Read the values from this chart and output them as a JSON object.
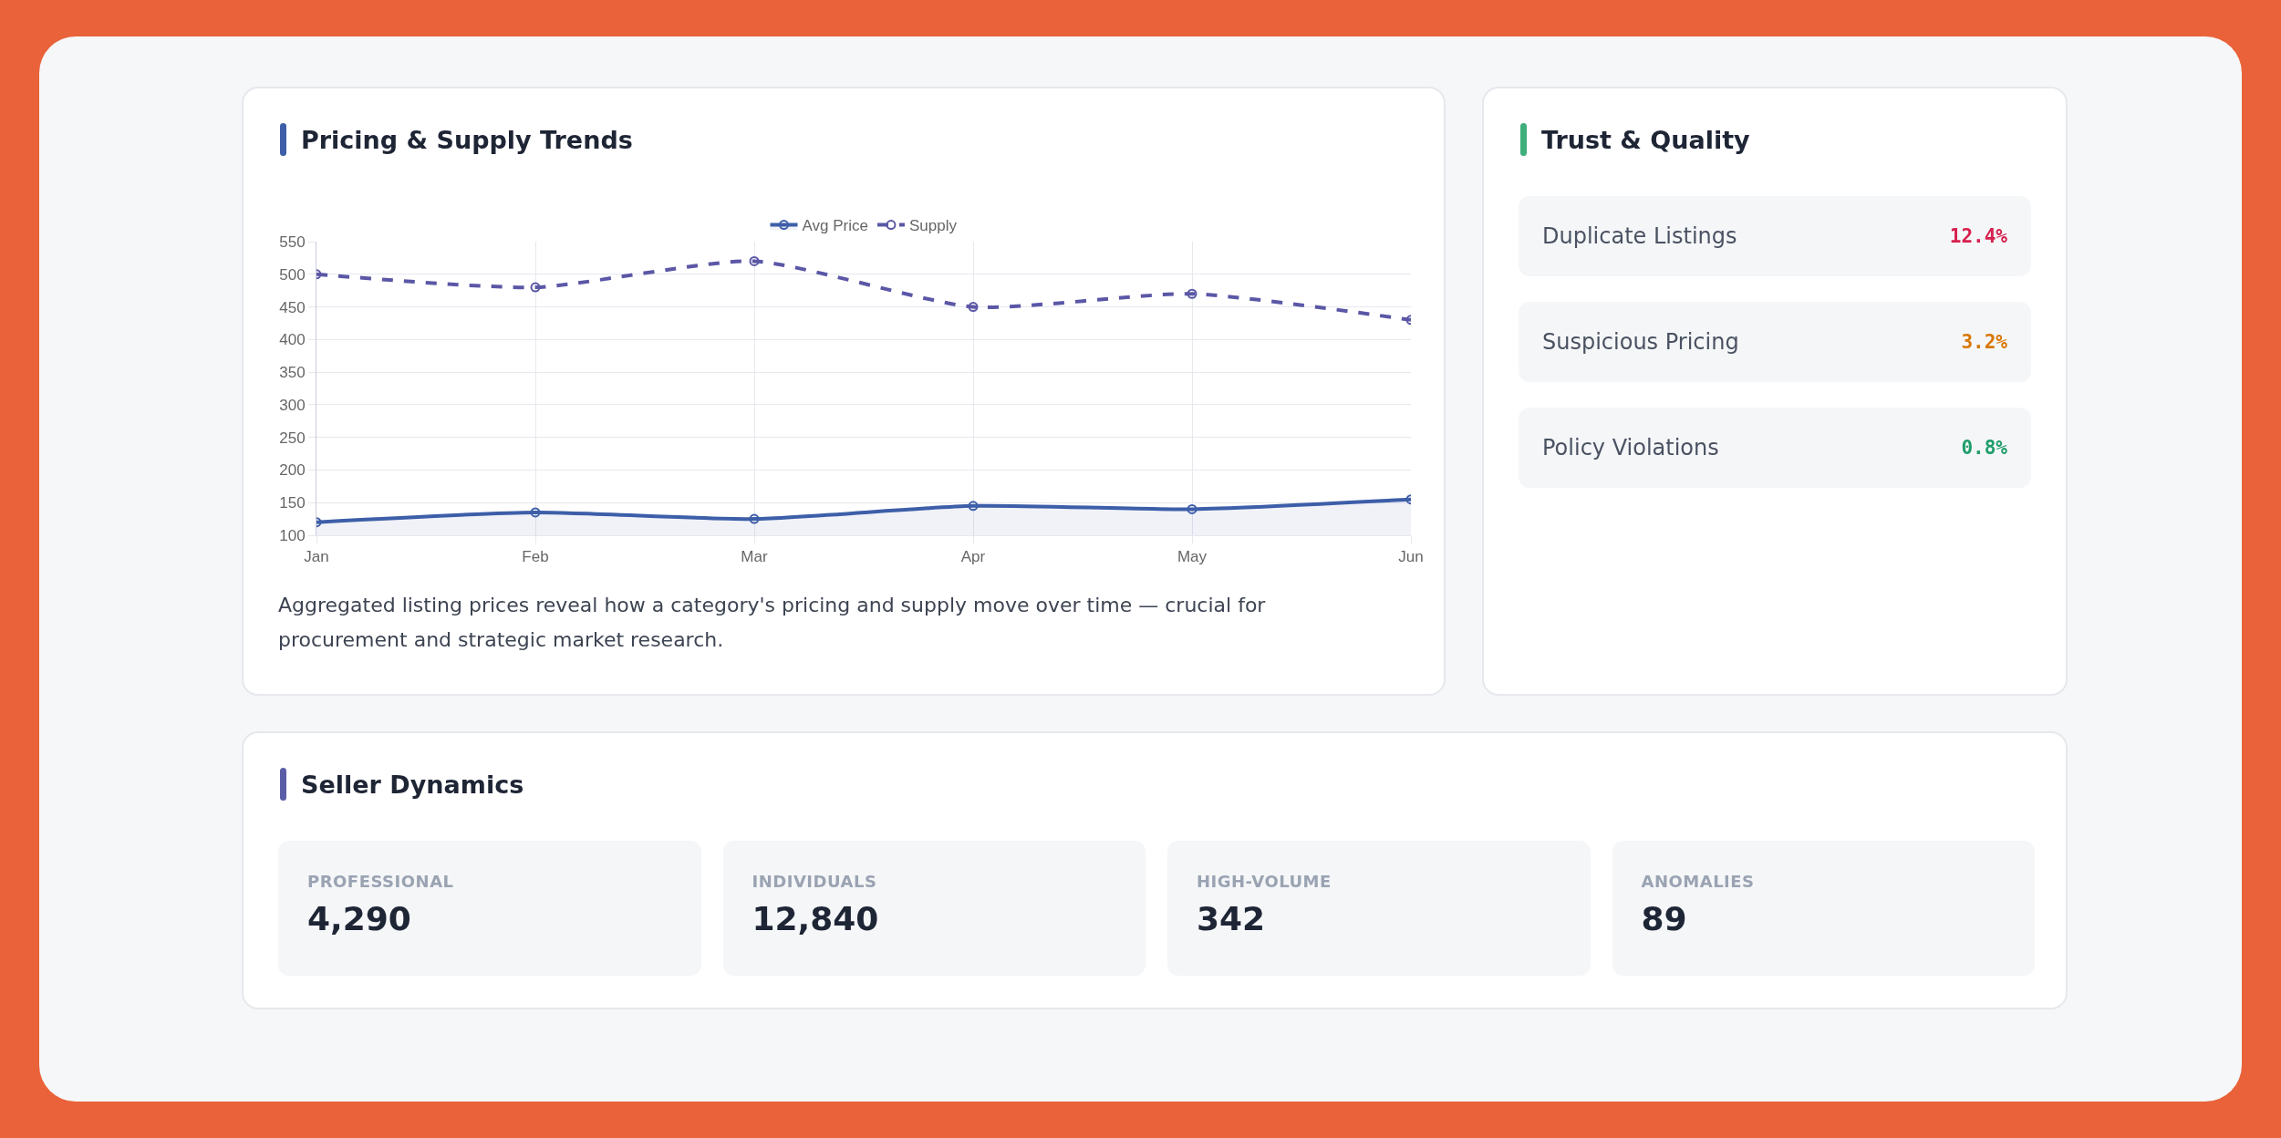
{
  "chart_data": [
    {
      "type": "line",
      "title": "Pricing & Supply Trends",
      "categories": [
        "Jan",
        "Feb",
        "Mar",
        "Apr",
        "May",
        "Jun"
      ],
      "series": [
        {
          "name": "Avg Price",
          "type": "area",
          "color": "#3d5ea8",
          "values": [
            120,
            135,
            125,
            145,
            140,
            155
          ]
        },
        {
          "name": "Supply",
          "type": "line",
          "line_style": "dashed",
          "color": "#5b57a6",
          "values": [
            500,
            480,
            520,
            450,
            470,
            430
          ]
        }
      ],
      "ylim": [
        100,
        550
      ],
      "yticks": [
        100,
        150,
        200,
        250,
        300,
        350,
        400,
        450,
        500,
        550
      ],
      "grid": true,
      "legend": "top",
      "marker": "circle",
      "annotations": [
        "Aggregated listing prices reveal how a category's pricing and supply move over time — crucial for procurement and strategic market research."
      ]
    },
    {
      "type": "other",
      "title": "Trust & Quality",
      "annotations": [
        "Duplicate Listings",
        "12.4%",
        "Suspicious Pricing",
        "3.2%",
        "Policy Violations",
        "0.8%"
      ]
    },
    {
      "type": "other",
      "title": "Seller Dynamics",
      "annotations": [
        "PROFESSIONAL",
        "4,290",
        "INDIVIDUALS",
        "12,840",
        "HIGH-VOLUME",
        "342",
        "ANOMALIES",
        "89"
      ]
    }
  ]
}
